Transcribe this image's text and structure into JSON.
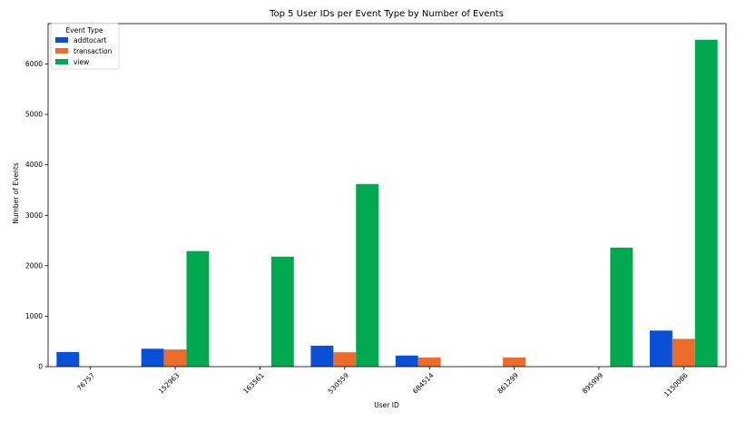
{
  "chart_data": {
    "type": "bar",
    "title": "Top 5 User IDs per Event Type by Number of Events",
    "xlabel": "User ID",
    "ylabel": "Number of Events",
    "categories": [
      "76757",
      "152963",
      "163561",
      "530559",
      "684514",
      "861299",
      "895999",
      "1150086"
    ],
    "ylim": [
      0,
      6800
    ],
    "yticks": [
      0,
      1000,
      2000,
      3000,
      4000,
      5000,
      6000
    ],
    "grid": false,
    "legend_title": "Event Type",
    "legend_position": "top-left",
    "series": [
      {
        "name": "addtocart",
        "color": "#0a50d6",
        "values": [
          290,
          355,
          null,
          415,
          220,
          null,
          null,
          715
        ]
      },
      {
        "name": "transaction",
        "color": "#ec6d2b",
        "values": [
          null,
          340,
          null,
          285,
          180,
          180,
          null,
          550
        ]
      },
      {
        "name": "view",
        "color": "#00a84f",
        "values": [
          null,
          2290,
          2180,
          3620,
          null,
          null,
          2360,
          6480
        ]
      }
    ]
  }
}
